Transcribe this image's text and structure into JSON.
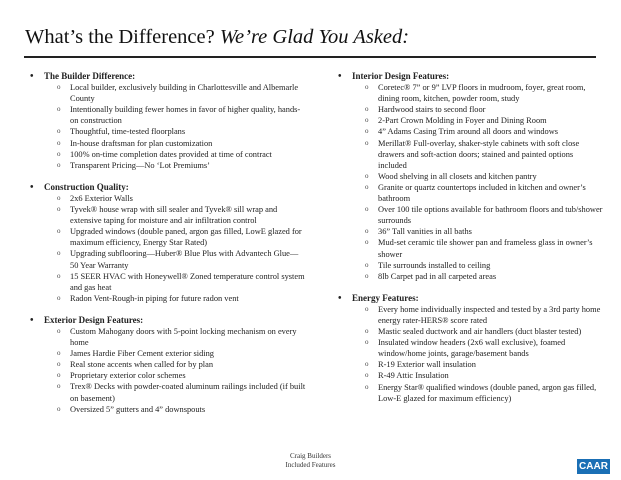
{
  "title": {
    "main": "What’s the Difference? ",
    "italic": "We’re Glad You Asked:"
  },
  "left_sections": [
    {
      "heading": "The Builder Difference:",
      "items": [
        "Local builder, exclusively building in Charlottesville and Albemarle County",
        "Intentionally building fewer homes in favor of higher quality, hands-on construction",
        "Thoughtful, time-tested floorplans",
        "In-house draftsman for plan customization",
        "100% on-time completion dates provided at time of contract",
        "Transparent Pricing—No ‘Lot Premiums’"
      ]
    },
    {
      "heading": "Construction Quality:",
      "items": [
        "2x6 Exterior Walls",
        "Tyvek® house wrap with sill sealer and Tyvek® sill wrap and extensive taping for moisture and air infiltration control",
        "Upgraded windows (double paned, argon gas filled, LowE glazed for maximum efficiency, Energy Star Rated)",
        "Upgrading subflooring—Huber® Blue Plus with Advantech Glue—50 Year Warranty",
        "15 SEER HVAC with Honeywell® Zoned temperature control system and gas heat",
        "Radon Vent-Rough-in piping for future radon vent"
      ]
    },
    {
      "heading": "Exterior Design Features:",
      "items": [
        "Custom Mahogany doors with 5-point locking mechanism on every home",
        "James Hardie Fiber Cement exterior siding",
        "Real stone accents when called for by plan",
        "Proprietary exterior color schemes",
        "Trex® Decks with powder-coated aluminum railings included (if built on basement)",
        "Oversized 5” gutters and 4” downspouts"
      ]
    }
  ],
  "right_sections": [
    {
      "heading": "Interior Design Features:",
      "items": [
        "Coretec® 7” or 9” LVP floors in mudroom, foyer, great room, dining room, kitchen, powder room, study",
        "Hardwood stairs to second floor",
        "2-Part Crown Molding in Foyer and Dining Room",
        "4” Adams Casing Trim around all doors and windows",
        "Merillat® Full-overlay, shaker-style cabinets with soft close drawers and soft-action doors; stained and painted options included",
        "Wood shelving in all closets and kitchen pantry",
        "Granite or quartz countertops included in kitchen and owner’s bathroom",
        "Over 100 tile options available for bathroom floors and tub/shower surrounds",
        "36” Tall vanities in all baths",
        "Mud-set ceramic tile shower pan and frameless glass in owner’s shower",
        "Tile surrounds installed to ceiling",
        "8lb Carpet pad in all carpeted areas"
      ]
    },
    {
      "heading": "Energy Features:",
      "items": [
        "Every home individually inspected and tested by a 3rd party home energy rater-HERS® score rated",
        "Mastic sealed ductwork and air handlers (duct blaster tested)",
        "Insulated window headers (2x6 wall exclusive), foamed window/home joints, garage/basement bands",
        "R-19 Exterior wall insulation",
        "R-49 Attic Insulation",
        "Energy Star® qualified windows (double paned, argon gas filled, Low-E glazed for maximum efficiency)"
      ]
    }
  ],
  "footer": {
    "line1": "Craig Builders",
    "line2": "Included Features"
  },
  "logo": {
    "text": "CAAR",
    "color": "#1a6fb5"
  }
}
